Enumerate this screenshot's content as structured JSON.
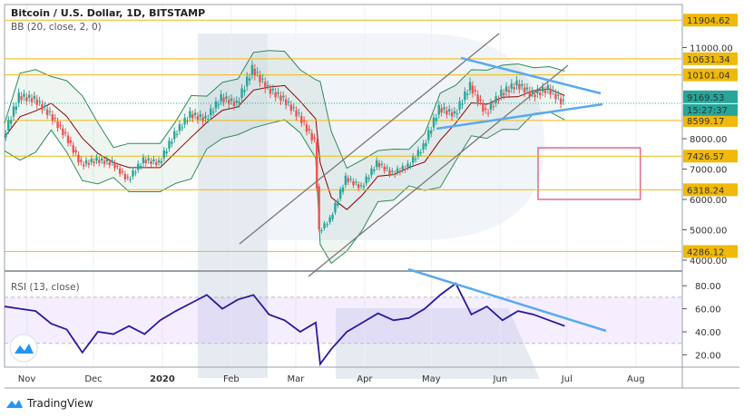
{
  "header": {
    "title": "Bitcoin / U.S. Dollar, 1D, BITSTAMP",
    "indicator": "BB (20, close, 2, 0)"
  },
  "rsi": {
    "label": "RSI (13, close)",
    "ticks": [
      "80.00",
      "60.00",
      "40.00",
      "20.00"
    ],
    "band": [
      30,
      70
    ]
  },
  "footer": {
    "brand": "TradingView"
  },
  "colors": {
    "up": "#26a69a",
    "down": "#ef5350",
    "level": "#f0b90b",
    "bb": "#2e8b57",
    "ma": "#8b0000",
    "trend": "#5aa9f0",
    "rsi": "#2a1a9c",
    "rect": "#e26b8a",
    "last": "#26a69a"
  },
  "chart_data": {
    "type": "candlestick",
    "title": "Bitcoin / U.S. Dollar, 1D, BITSTAMP",
    "y_axis_ticks": [
      11000,
      8000,
      7000,
      6000,
      5000,
      4000
    ],
    "ylim": [
      3600,
      12300
    ],
    "x_ticks": [
      "Nov",
      "Dec",
      "2020",
      "Feb",
      "Mar",
      "Apr",
      "May",
      "Jun",
      "Jul",
      "Aug"
    ],
    "levels": [
      "11904.62",
      "10631.34",
      "10101.04",
      "8599.17",
      "7426.57",
      "6318.24",
      "4286.12"
    ],
    "last_price": "9169.53",
    "countdown": "15:27:37",
    "dates": [
      "2019-10-22",
      "2019-10-29",
      "2019-11-05",
      "2019-11-12",
      "2019-11-19",
      "2019-11-26",
      "2019-12-03",
      "2019-12-10",
      "2019-12-17",
      "2019-12-24",
      "2019-12-31",
      "2020-01-07",
      "2020-01-14",
      "2020-01-21",
      "2020-01-28",
      "2020-02-04",
      "2020-02-11",
      "2020-02-18",
      "2020-02-25",
      "2020-03-03",
      "2020-03-10",
      "2020-03-12",
      "2020-03-17",
      "2020-03-24",
      "2020-03-31",
      "2020-04-07",
      "2020-04-14",
      "2020-04-21",
      "2020-04-28",
      "2020-05-05",
      "2020-05-12",
      "2020-05-19",
      "2020-05-26",
      "2020-06-02",
      "2020-06-09",
      "2020-06-16",
      "2020-06-23",
      "2020-06-30"
    ],
    "close": [
      8050,
      9400,
      9300,
      8800,
      8100,
      7150,
      7300,
      7200,
      6650,
      7300,
      7200,
      8150,
      8800,
      8650,
      9350,
      9150,
      10300,
      9650,
      9300,
      8750,
      7900,
      4950,
      5350,
      6700,
      6400,
      7200,
      6850,
      7100,
      7750,
      9000,
      8800,
      9750,
      8850,
      9500,
      9800,
      9450,
      9650,
      9169
    ],
    "rsi_values": [
      62,
      60,
      58,
      47,
      42,
      22,
      40,
      38,
      45,
      38,
      50,
      58,
      65,
      72,
      60,
      68,
      72,
      55,
      50,
      40,
      48,
      12,
      25,
      40,
      48,
      56,
      50,
      52,
      60,
      72,
      82,
      55,
      62,
      50,
      58,
      55,
      50,
      45
    ],
    "zones": [
      {
        "from": "2020-06-18",
        "to": "2020-08-03",
        "low": 6000,
        "high": 7700
      }
    ]
  }
}
